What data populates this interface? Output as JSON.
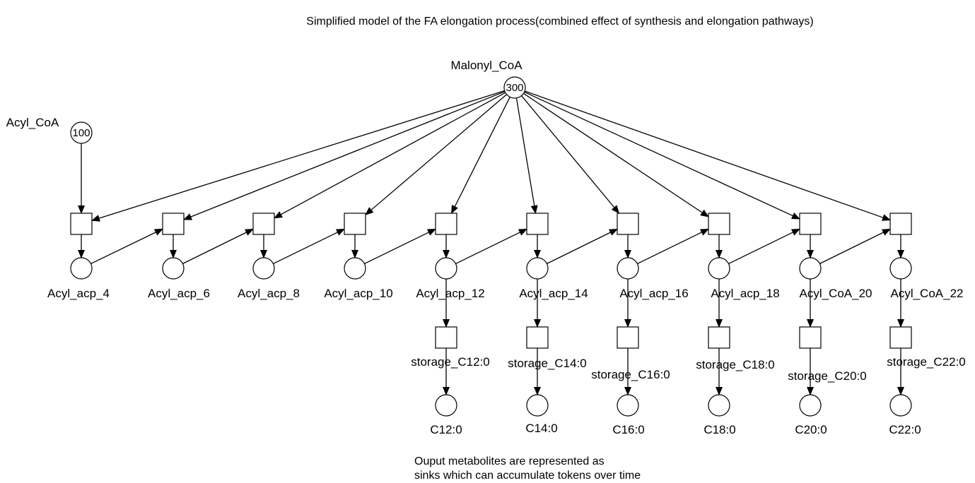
{
  "title": "Simplified model of the FA elongation process(combined effect of synthesis and elongation pathways)",
  "source_places": {
    "malonyl": {
      "label": "Malonyl_CoA",
      "tokens": "300"
    },
    "acyl_coa": {
      "label": "Acyl_CoA",
      "tokens": "100"
    }
  },
  "chain_places": [
    "Acyl_acp_4",
    "Acyl_acp_6",
    "Acyl_acp_8",
    "Acyl_acp_10",
    "Acyl_acp_12",
    "Acyl_acp_14",
    "Acyl_acp_16",
    "Acyl_acp_18",
    "Acyl_CoA_20",
    "Acyl_CoA_22"
  ],
  "storage_transitions": [
    "storage_C12:0",
    "storage_C14:0",
    "storage_C16:0",
    "storage_C18:0",
    "storage_C20:0",
    "storage_C22:0"
  ],
  "sink_places": [
    "C12:0",
    "C14:0",
    "C16:0",
    "C18:0",
    "C20:0",
    "C22:0"
  ],
  "note": {
    "line1": "Ouput metabolites are represented as",
    "line2": "sinks which can accumulate tokens over time"
  }
}
